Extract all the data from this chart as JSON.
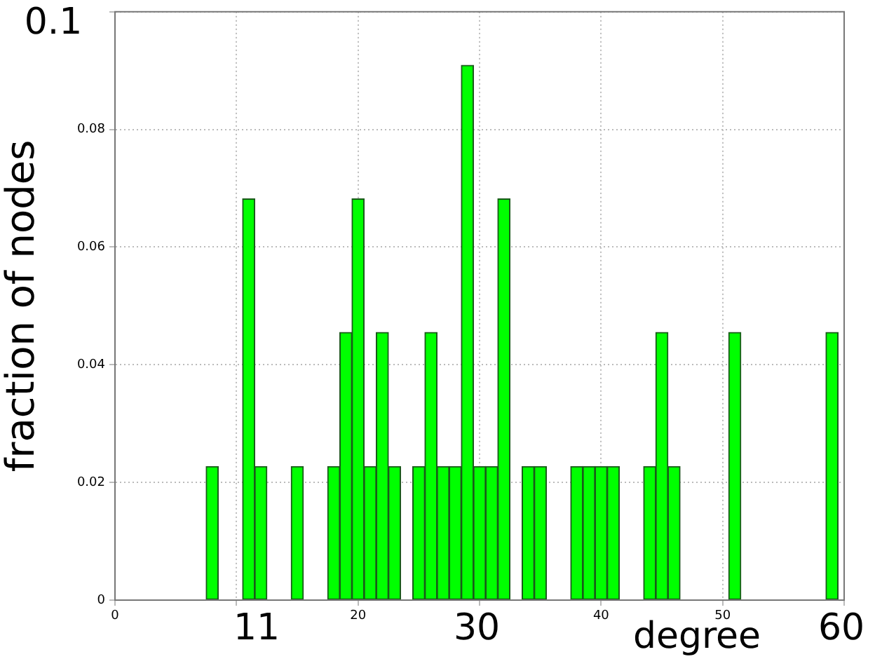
{
  "chart_data": {
    "type": "histogram",
    "xlabel": "degree",
    "ylabel": "fraction of nodes",
    "bins": [
      7.5,
      8.5,
      9.5,
      10.5,
      11.5,
      12.5,
      13.5,
      14.5,
      15.5,
      16.5,
      17.5,
      18.5,
      19.5,
      20.5,
      21.5,
      22.5,
      23.5,
      24.5,
      25.5,
      26.5,
      27.5,
      28.5,
      29.5,
      30.5,
      31.5,
      32.5,
      33.5,
      34.5,
      35.5,
      36.5,
      37.5,
      38.5,
      39.5,
      40.5,
      41.5,
      42.5,
      43.5,
      44.5,
      45.5,
      46.5,
      47.5,
      48.5,
      49.5,
      50.5,
      51.5,
      52.5,
      53.5,
      54.5,
      55.5,
      56.5,
      57.5,
      58.5,
      59.5
    ],
    "values": [
      0.0227,
      0,
      0,
      0.0682,
      0.0227,
      0,
      0,
      0.0227,
      0,
      0,
      0.0227,
      0.0455,
      0.0682,
      0.0227,
      0.0455,
      0.0227,
      0,
      0.0227,
      0.0455,
      0.0227,
      0.0227,
      0.0909,
      0.0227,
      0.0227,
      0.0682,
      0,
      0.0227,
      0.0227,
      0,
      0,
      0.0227,
      0.0227,
      0.0227,
      0.0227,
      0,
      0,
      0.0227,
      0.0455,
      0.0227,
      0,
      0,
      0,
      0,
      0.0455,
      0,
      0,
      0,
      0,
      0,
      0,
      0,
      0.0455
    ],
    "color": "#00ff00",
    "xlim": [
      0,
      60
    ],
    "xticks": [
      0,
      {
        "value": 10,
        "label": null
      },
      20,
      {
        "value": 30,
        "label": null
      },
      40,
      50,
      {
        "value": 60,
        "label": null
      }
    ],
    "ylim": [
      0,
      0.1
    ],
    "yticks": [
      0,
      0.02,
      0.04,
      0.06,
      0.08,
      {
        "value": 0.1,
        "label": null
      }
    ],
    "annotations": [
      "11",
      "30",
      "60",
      "0.1"
    ],
    "grid": true,
    "legend": false
  }
}
